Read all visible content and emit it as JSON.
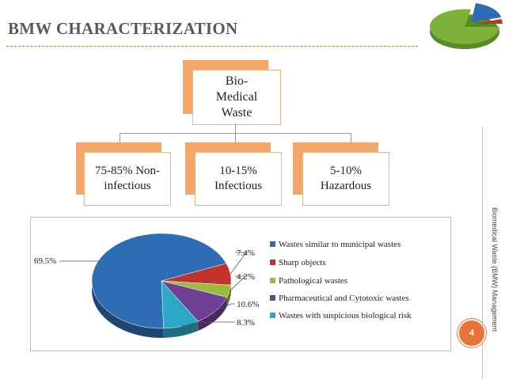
{
  "slide": {
    "title": "BMW CHARACTERIZATION",
    "sidebar_text": "Biomedical Waste (BMW) Management",
    "page_number": "4"
  },
  "org_chart": {
    "root": "Bio-Medical Waste",
    "children": [
      {
        "label": "75-85% Non-infectious"
      },
      {
        "label": "10-15% Infectious"
      },
      {
        "label": "5-10% Hazardous"
      }
    ]
  },
  "colors": {
    "accent": "#e8743b",
    "box_border": "#f0b583",
    "box_shadow": "#f2a66a"
  },
  "chart_data": {
    "type": "pie",
    "title": "",
    "series": [
      {
        "name": "Wastes similar to municipal wastes",
        "value": 69.5,
        "label": "69.5%",
        "color": "#2e6db4"
      },
      {
        "name": "Sharp objects",
        "value": 7.4,
        "label": "7.4%",
        "color": "#c0322b"
      },
      {
        "name": "Pathological wastes",
        "value": 4.2,
        "label": "4.2%",
        "color": "#9bbb3c"
      },
      {
        "name": "Pharmaceutical and Cytotoxic wastes",
        "value": 10.6,
        "label": "10.6%",
        "color": "#6f3f96"
      },
      {
        "name": "Wastes with suspicious biological risk",
        "value": 8.3,
        "label": "8.3%",
        "color": "#2ea8c7"
      }
    ],
    "legend_position": "right"
  }
}
